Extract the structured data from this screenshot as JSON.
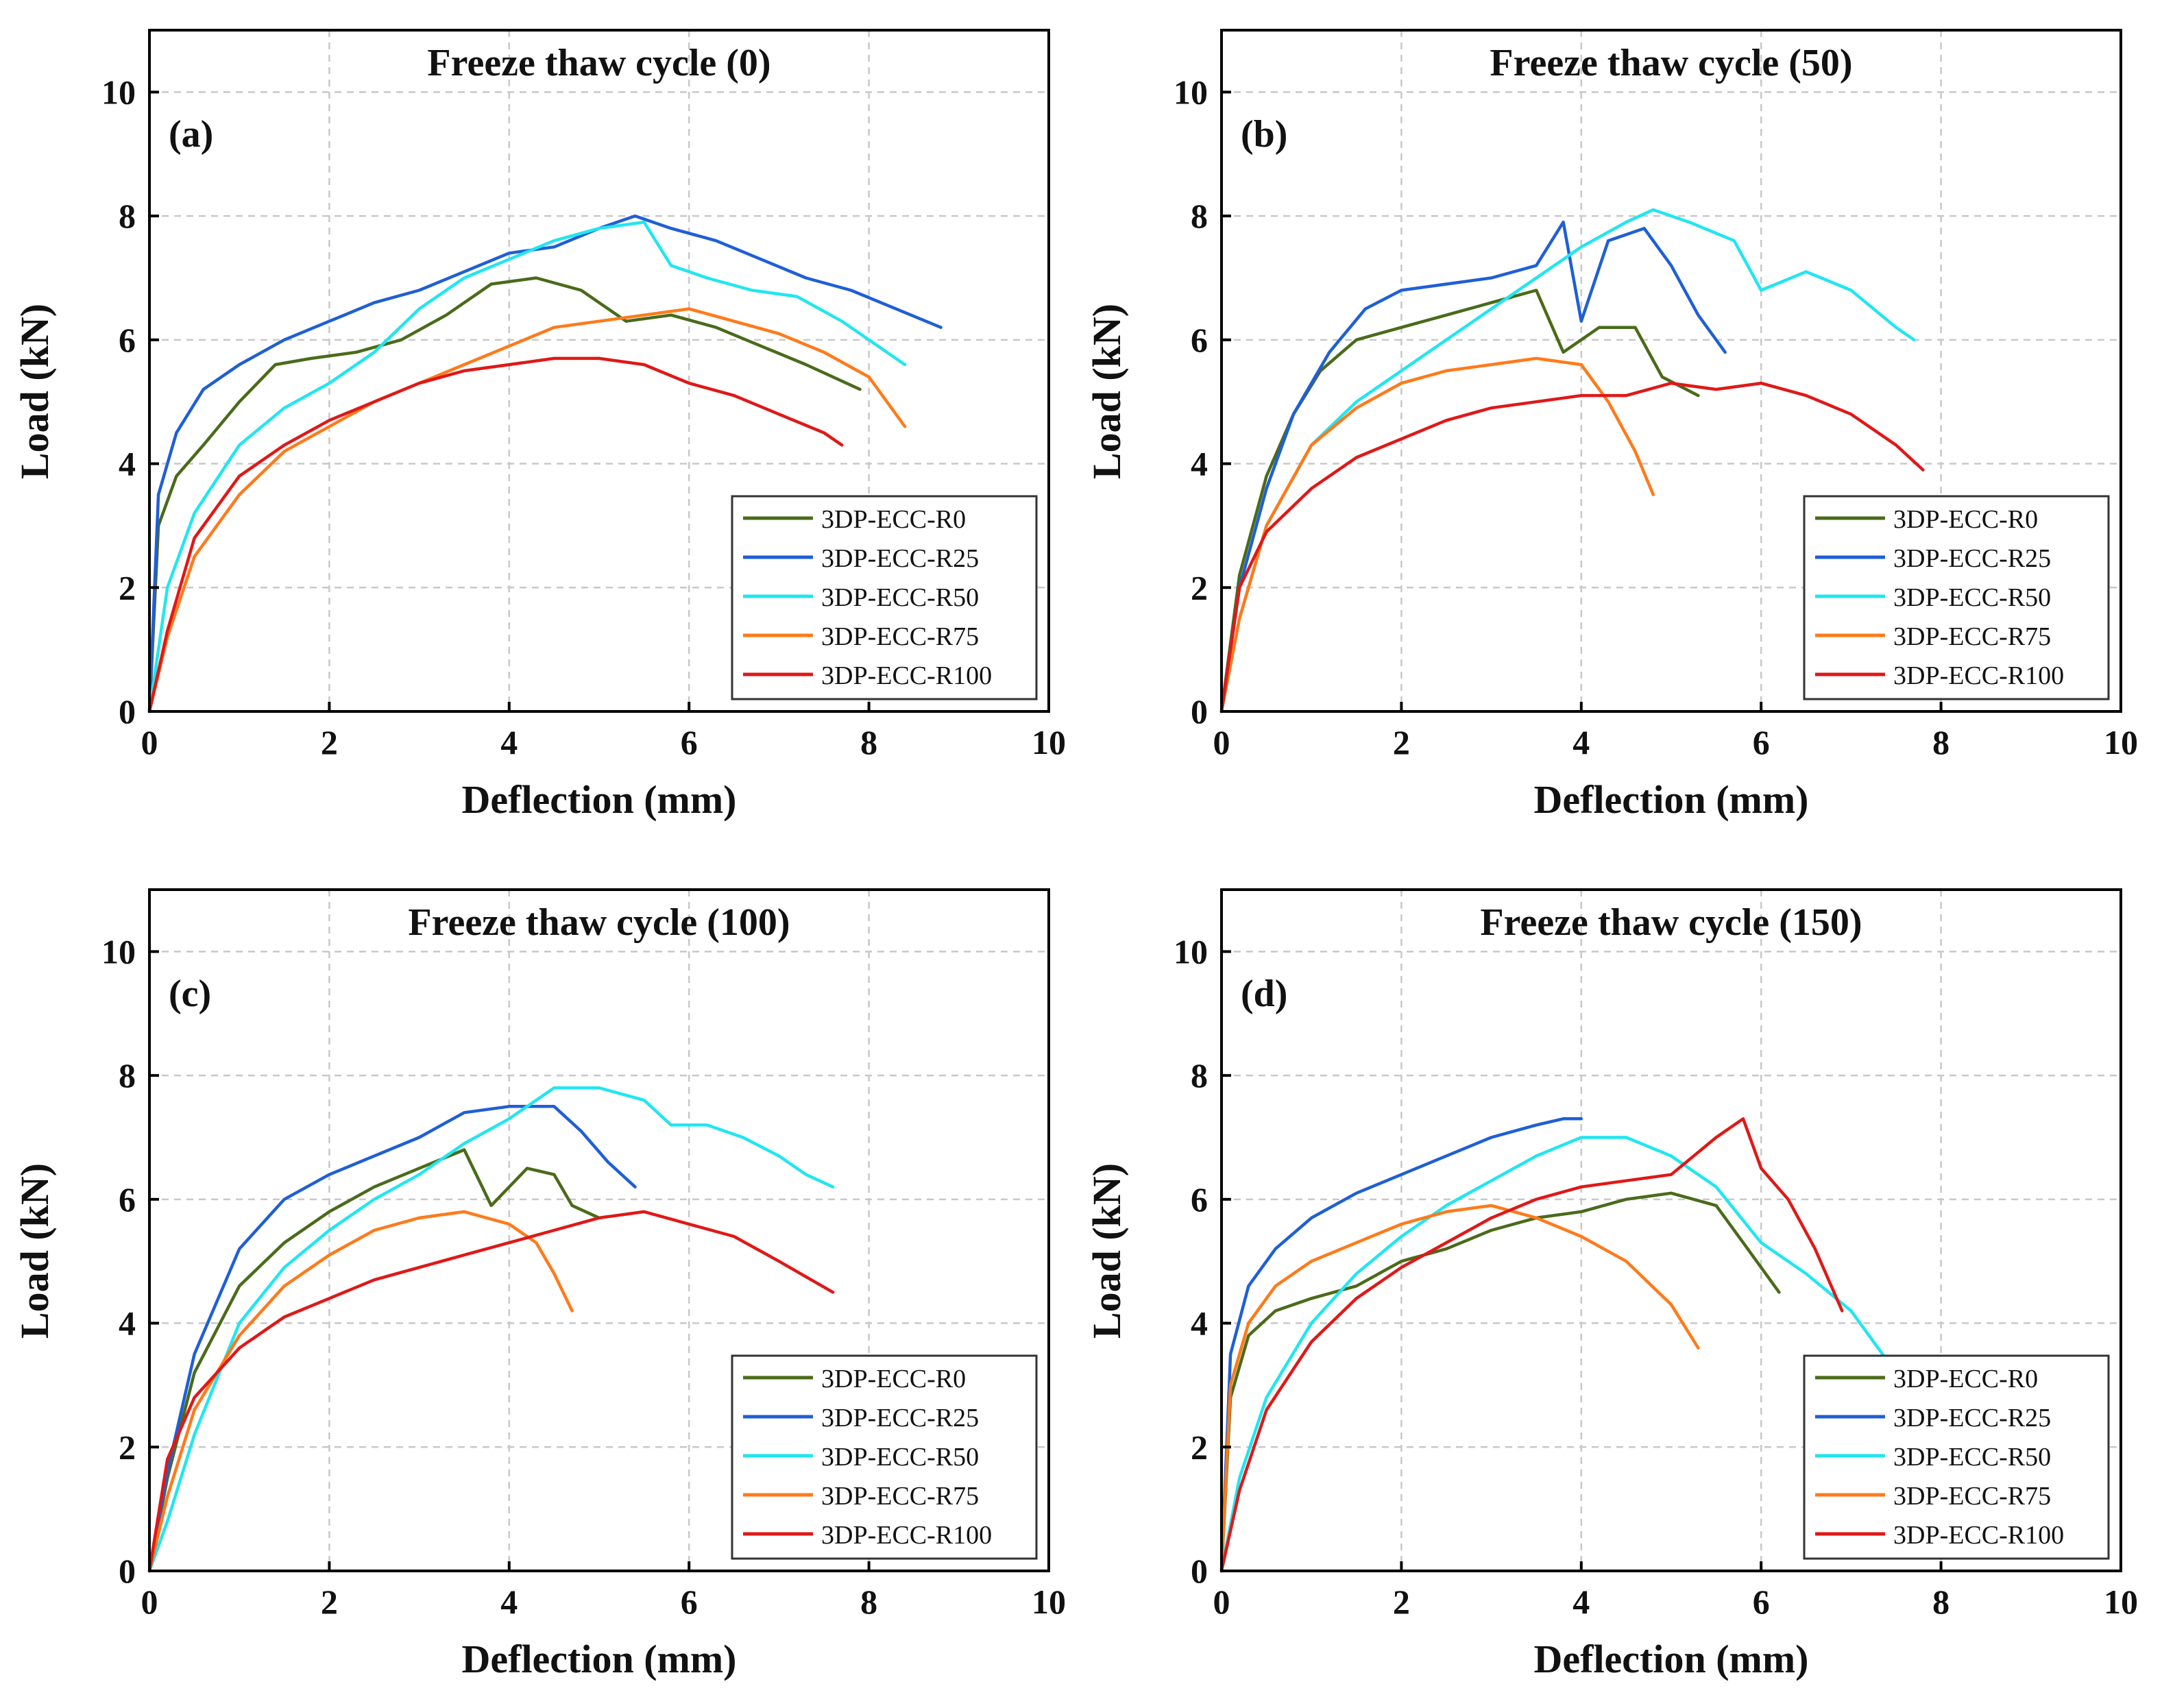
{
  "chart_data": [
    {
      "type": "line",
      "panel_label": "(a)",
      "title": "Freeze thaw cycle (0)",
      "xlabel": "Deflection (mm)",
      "ylabel": "Load (kN)",
      "xlim": [
        0,
        10
      ],
      "ylim": [
        0,
        11
      ],
      "xticks": [
        "0",
        "2",
        "4",
        "6",
        "8",
        "10"
      ],
      "yticks": [
        "0",
        "2",
        "4",
        "6",
        "8",
        "10"
      ],
      "grid": true,
      "legend_position": "bottom-right",
      "series": [
        {
          "name": "3DP-ECC-R0",
          "color": "#4a6b1a",
          "x": [
            0,
            0.1,
            0.3,
            0.6,
            1.0,
            1.4,
            1.8,
            2.3,
            2.8,
            3.3,
            3.8,
            4.3,
            4.8,
            5.3,
            5.8,
            6.3,
            6.8,
            7.3,
            7.9
          ],
          "y": [
            0,
            3.0,
            3.8,
            4.3,
            5.0,
            5.6,
            5.7,
            5.8,
            6.0,
            6.4,
            6.9,
            7.0,
            6.8,
            6.3,
            6.4,
            6.2,
            5.9,
            5.6,
            5.2
          ]
        },
        {
          "name": "3DP-ECC-R25",
          "color": "#1f5fd6",
          "x": [
            0,
            0.1,
            0.3,
            0.6,
            1.0,
            1.5,
            2.0,
            2.5,
            3.0,
            3.5,
            4.0,
            4.5,
            5.0,
            5.4,
            5.8,
            6.3,
            6.8,
            7.3,
            7.8,
            8.3,
            8.8
          ],
          "y": [
            0,
            3.5,
            4.5,
            5.2,
            5.6,
            6.0,
            6.3,
            6.6,
            6.8,
            7.1,
            7.4,
            7.5,
            7.8,
            8.0,
            7.8,
            7.6,
            7.3,
            7.0,
            6.8,
            6.5,
            6.2
          ]
        },
        {
          "name": "3DP-ECC-R50",
          "color": "#21e6f0",
          "x": [
            0,
            0.2,
            0.5,
            1.0,
            1.5,
            2.0,
            2.5,
            3.0,
            3.5,
            4.0,
            4.5,
            5.0,
            5.5,
            5.8,
            6.2,
            6.7,
            7.2,
            7.7,
            8.0,
            8.4
          ],
          "y": [
            0,
            2.0,
            3.2,
            4.3,
            4.9,
            5.3,
            5.8,
            6.5,
            7.0,
            7.3,
            7.6,
            7.8,
            7.9,
            7.2,
            7.0,
            6.8,
            6.7,
            6.3,
            6.0,
            5.6
          ]
        },
        {
          "name": "3DP-ECC-R75",
          "color": "#ff7a1a",
          "x": [
            0,
            0.2,
            0.5,
            1.0,
            1.5,
            2.0,
            2.5,
            3.0,
            3.5,
            4.0,
            4.5,
            5.0,
            5.5,
            6.0,
            6.5,
            7.0,
            7.5,
            8.0,
            8.4
          ],
          "y": [
            0,
            1.2,
            2.5,
            3.5,
            4.2,
            4.6,
            5.0,
            5.3,
            5.6,
            5.9,
            6.2,
            6.3,
            6.4,
            6.5,
            6.3,
            6.1,
            5.8,
            5.4,
            4.6
          ]
        },
        {
          "name": "3DP-ECC-R100",
          "color": "#e01818",
          "x": [
            0,
            0.2,
            0.5,
            1.0,
            1.5,
            2.0,
            2.5,
            3.0,
            3.5,
            4.0,
            4.5,
            5.0,
            5.5,
            6.0,
            6.5,
            7.0,
            7.5,
            7.7
          ],
          "y": [
            0,
            1.3,
            2.8,
            3.8,
            4.3,
            4.7,
            5.0,
            5.3,
            5.5,
            5.6,
            5.7,
            5.7,
            5.6,
            5.3,
            5.1,
            4.8,
            4.5,
            4.3
          ]
        }
      ]
    },
    {
      "type": "line",
      "panel_label": "(b)",
      "title": "Freeze thaw cycle (50)",
      "xlabel": "Deflection (mm)",
      "ylabel": "Load (kN)",
      "xlim": [
        0,
        10
      ],
      "ylim": [
        0,
        11
      ],
      "xticks": [
        "0",
        "2",
        "4",
        "6",
        "8",
        "10"
      ],
      "yticks": [
        "0",
        "2",
        "4",
        "6",
        "8",
        "10"
      ],
      "grid": true,
      "legend_position": "bottom-right",
      "series": [
        {
          "name": "3DP-ECC-R0",
          "color": "#4a6b1a",
          "x": [
            0,
            0.2,
            0.5,
            0.8,
            1.1,
            1.5,
            2.0,
            2.5,
            3.0,
            3.5,
            3.8,
            4.2,
            4.6,
            4.9,
            5.3
          ],
          "y": [
            0,
            2.2,
            3.8,
            4.8,
            5.5,
            6.0,
            6.2,
            6.4,
            6.6,
            6.8,
            5.8,
            6.2,
            6.2,
            5.4,
            5.1
          ]
        },
        {
          "name": "3DP-ECC-R25",
          "color": "#1f5fd6",
          "x": [
            0,
            0.2,
            0.5,
            0.8,
            1.2,
            1.6,
            2.0,
            2.5,
            3.0,
            3.5,
            3.8,
            4.0,
            4.3,
            4.7,
            5.0,
            5.3,
            5.6
          ],
          "y": [
            0,
            2.0,
            3.6,
            4.8,
            5.8,
            6.5,
            6.8,
            6.9,
            7.0,
            7.2,
            7.9,
            6.3,
            7.6,
            7.8,
            7.2,
            6.4,
            5.8
          ]
        },
        {
          "name": "3DP-ECC-R50",
          "color": "#21e6f0",
          "x": [
            0,
            0.2,
            0.5,
            1.0,
            1.5,
            2.0,
            2.5,
            3.0,
            3.5,
            4.0,
            4.5,
            4.8,
            5.2,
            5.7,
            6.0,
            6.5,
            7.0,
            7.5,
            7.7
          ],
          "y": [
            0,
            1.5,
            3.0,
            4.3,
            5.0,
            5.5,
            6.0,
            6.5,
            7.0,
            7.5,
            7.9,
            8.1,
            7.9,
            7.6,
            6.8,
            7.1,
            6.8,
            6.2,
            6.0
          ]
        },
        {
          "name": "3DP-ECC-R75",
          "color": "#ff7a1a",
          "x": [
            0,
            0.2,
            0.5,
            1.0,
            1.5,
            2.0,
            2.5,
            3.0,
            3.5,
            4.0,
            4.3,
            4.6,
            4.8
          ],
          "y": [
            0,
            1.5,
            3.0,
            4.3,
            4.9,
            5.3,
            5.5,
            5.6,
            5.7,
            5.6,
            5.0,
            4.2,
            3.5
          ]
        },
        {
          "name": "3DP-ECC-R100",
          "color": "#e01818",
          "x": [
            0,
            0.2,
            0.5,
            1.0,
            1.5,
            2.0,
            2.5,
            3.0,
            3.5,
            4.0,
            4.5,
            5.0,
            5.5,
            6.0,
            6.5,
            7.0,
            7.5,
            7.8
          ],
          "y": [
            0,
            2.0,
            2.9,
            3.6,
            4.1,
            4.4,
            4.7,
            4.9,
            5.0,
            5.1,
            5.1,
            5.3,
            5.2,
            5.3,
            5.1,
            4.8,
            4.3,
            3.9
          ]
        }
      ]
    },
    {
      "type": "line",
      "panel_label": "(c)",
      "title": "Freeze thaw cycle (100)",
      "xlabel": "Deflection (mm)",
      "ylabel": "Load (kN)",
      "xlim": [
        0,
        10
      ],
      "ylim": [
        0,
        11
      ],
      "xticks": [
        "0",
        "2",
        "4",
        "6",
        "8",
        "10"
      ],
      "yticks": [
        "0",
        "2",
        "4",
        "6",
        "8",
        "10"
      ],
      "grid": true,
      "legend_position": "bottom-right",
      "series": [
        {
          "name": "3DP-ECC-R0",
          "color": "#4a6b1a",
          "x": [
            0,
            0.2,
            0.5,
            1.0,
            1.5,
            2.0,
            2.5,
            3.0,
            3.5,
            3.8,
            4.2,
            4.5,
            4.7,
            5.0
          ],
          "y": [
            0,
            1.5,
            3.2,
            4.6,
            5.3,
            5.8,
            6.2,
            6.5,
            6.8,
            5.9,
            6.5,
            6.4,
            5.9,
            5.7
          ]
        },
        {
          "name": "3DP-ECC-R25",
          "color": "#1f5fd6",
          "x": [
            0,
            0.2,
            0.5,
            1.0,
            1.5,
            2.0,
            2.5,
            3.0,
            3.5,
            4.0,
            4.5,
            4.8,
            5.1,
            5.4
          ],
          "y": [
            0,
            1.6,
            3.5,
            5.2,
            6.0,
            6.4,
            6.7,
            7.0,
            7.4,
            7.5,
            7.5,
            7.1,
            6.6,
            6.2
          ]
        },
        {
          "name": "3DP-ECC-R50",
          "color": "#21e6f0",
          "x": [
            0,
            0.2,
            0.5,
            1.0,
            1.5,
            2.0,
            2.5,
            3.0,
            3.5,
            4.0,
            4.5,
            5.0,
            5.5,
            5.8,
            6.2,
            6.6,
            7.0,
            7.3,
            7.6
          ],
          "y": [
            0,
            0.8,
            2.2,
            4.0,
            4.9,
            5.5,
            6.0,
            6.4,
            6.9,
            7.3,
            7.8,
            7.8,
            7.6,
            7.2,
            7.2,
            7.0,
            6.7,
            6.4,
            6.2
          ]
        },
        {
          "name": "3DP-ECC-R75",
          "color": "#ff7a1a",
          "x": [
            0,
            0.2,
            0.5,
            1.0,
            1.5,
            2.0,
            2.5,
            3.0,
            3.5,
            4.0,
            4.3,
            4.5,
            4.7
          ],
          "y": [
            0,
            1.2,
            2.6,
            3.8,
            4.6,
            5.1,
            5.5,
            5.7,
            5.8,
            5.6,
            5.3,
            4.8,
            4.2
          ]
        },
        {
          "name": "3DP-ECC-R100",
          "color": "#e01818",
          "x": [
            0,
            0.2,
            0.5,
            1.0,
            1.5,
            2.0,
            2.5,
            3.0,
            3.5,
            4.0,
            4.5,
            5.0,
            5.5,
            6.0,
            6.5,
            7.0,
            7.6
          ],
          "y": [
            0,
            1.8,
            2.8,
            3.6,
            4.1,
            4.4,
            4.7,
            4.9,
            5.1,
            5.3,
            5.5,
            5.7,
            5.8,
            5.6,
            5.4,
            5.0,
            4.5
          ]
        }
      ]
    },
    {
      "type": "line",
      "panel_label": "(d)",
      "title": "Freeze thaw cycle (150)",
      "xlabel": "Deflection (mm)",
      "ylabel": "Load (kN)",
      "xlim": [
        0,
        10
      ],
      "ylim": [
        0,
        11
      ],
      "xticks": [
        "0",
        "2",
        "4",
        "6",
        "8",
        "10"
      ],
      "yticks": [
        "0",
        "2",
        "4",
        "6",
        "8",
        "10"
      ],
      "grid": true,
      "legend_position": "bottom-right",
      "series": [
        {
          "name": "3DP-ECC-R0",
          "color": "#4a6b1a",
          "x": [
            0,
            0.1,
            0.3,
            0.6,
            1.0,
            1.5,
            2.0,
            2.5,
            3.0,
            3.5,
            4.0,
            4.5,
            5.0,
            5.5,
            5.8,
            6.2
          ],
          "y": [
            0,
            2.8,
            3.8,
            4.2,
            4.4,
            4.6,
            5.0,
            5.2,
            5.5,
            5.7,
            5.8,
            6.0,
            6.1,
            5.9,
            5.3,
            4.5
          ]
        },
        {
          "name": "3DP-ECC-R25",
          "color": "#1f5fd6",
          "x": [
            0,
            0.1,
            0.3,
            0.6,
            1.0,
            1.5,
            2.0,
            2.5,
            3.0,
            3.5,
            3.8,
            4.0
          ],
          "y": [
            0,
            3.5,
            4.6,
            5.2,
            5.7,
            6.1,
            6.4,
            6.7,
            7.0,
            7.2,
            7.3,
            7.3
          ]
        },
        {
          "name": "3DP-ECC-R50",
          "color": "#21e6f0",
          "x": [
            0,
            0.2,
            0.5,
            1.0,
            1.5,
            2.0,
            2.5,
            3.0,
            3.5,
            4.0,
            4.5,
            5.0,
            5.5,
            6.0,
            6.5,
            7.0,
            7.4
          ],
          "y": [
            0,
            1.5,
            2.8,
            4.0,
            4.8,
            5.4,
            5.9,
            6.3,
            6.7,
            7.0,
            7.0,
            6.7,
            6.2,
            5.3,
            4.8,
            4.2,
            3.4
          ]
        },
        {
          "name": "3DP-ECC-R75",
          "color": "#ff7a1a",
          "x": [
            0,
            0.1,
            0.3,
            0.6,
            1.0,
            1.5,
            2.0,
            2.5,
            3.0,
            3.5,
            4.0,
            4.5,
            5.0,
            5.3
          ],
          "y": [
            0,
            3.0,
            4.0,
            4.6,
            5.0,
            5.3,
            5.6,
            5.8,
            5.9,
            5.7,
            5.4,
            5.0,
            4.3,
            3.6
          ]
        },
        {
          "name": "3DP-ECC-R100",
          "color": "#e01818",
          "x": [
            0,
            0.2,
            0.5,
            1.0,
            1.5,
            2.0,
            2.5,
            3.0,
            3.5,
            4.0,
            4.5,
            5.0,
            5.5,
            5.8,
            6.0,
            6.3,
            6.6,
            6.9
          ],
          "y": [
            0,
            1.3,
            2.6,
            3.7,
            4.4,
            4.9,
            5.3,
            5.7,
            6.0,
            6.2,
            6.3,
            6.4,
            7.0,
            7.3,
            6.5,
            6.0,
            5.2,
            4.2
          ]
        }
      ]
    }
  ]
}
